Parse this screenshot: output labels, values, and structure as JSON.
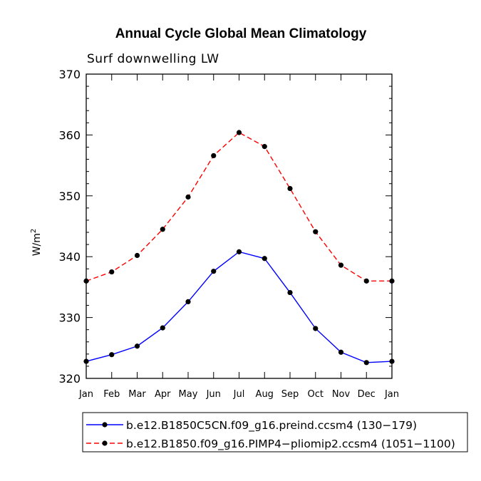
{
  "chart_data": {
    "type": "line",
    "title": "Annual Cycle Global Mean Climatology",
    "subtitle": "Surf downwelling LW",
    "ylabel": "W/m",
    "ylabel_superscript": "2",
    "xlabel": "",
    "ylim": [
      320,
      370
    ],
    "yticks": [
      320,
      330,
      340,
      350,
      360,
      370
    ],
    "categories": [
      "Jan",
      "Feb",
      "Mar",
      "Apr",
      "May",
      "Jun",
      "Jul",
      "Aug",
      "Sep",
      "Oct",
      "Nov",
      "Dec",
      "Jan"
    ],
    "series": [
      {
        "name": "b.e12.B1850C5CN.f09_g16.preind.ccsm4 (130−179)",
        "color": "#0000ff",
        "dash": "solid",
        "marker": "filled-circle",
        "values": [
          322.8,
          323.9,
          325.3,
          328.3,
          332.6,
          337.6,
          340.8,
          339.7,
          334.1,
          328.2,
          324.3,
          322.6,
          322.8
        ]
      },
      {
        "name": "b.e12.B1850.f09_g16.PIMP4−pliomip2.ccsm4 (1051−1100)",
        "color": "#ff0000",
        "dash": "dashed",
        "marker": "filled-circle",
        "values": [
          336.0,
          337.5,
          340.2,
          344.5,
          349.8,
          356.6,
          360.4,
          358.1,
          351.2,
          344.1,
          338.6,
          336.0,
          336.0
        ]
      }
    ],
    "legend_position": "bottom"
  }
}
